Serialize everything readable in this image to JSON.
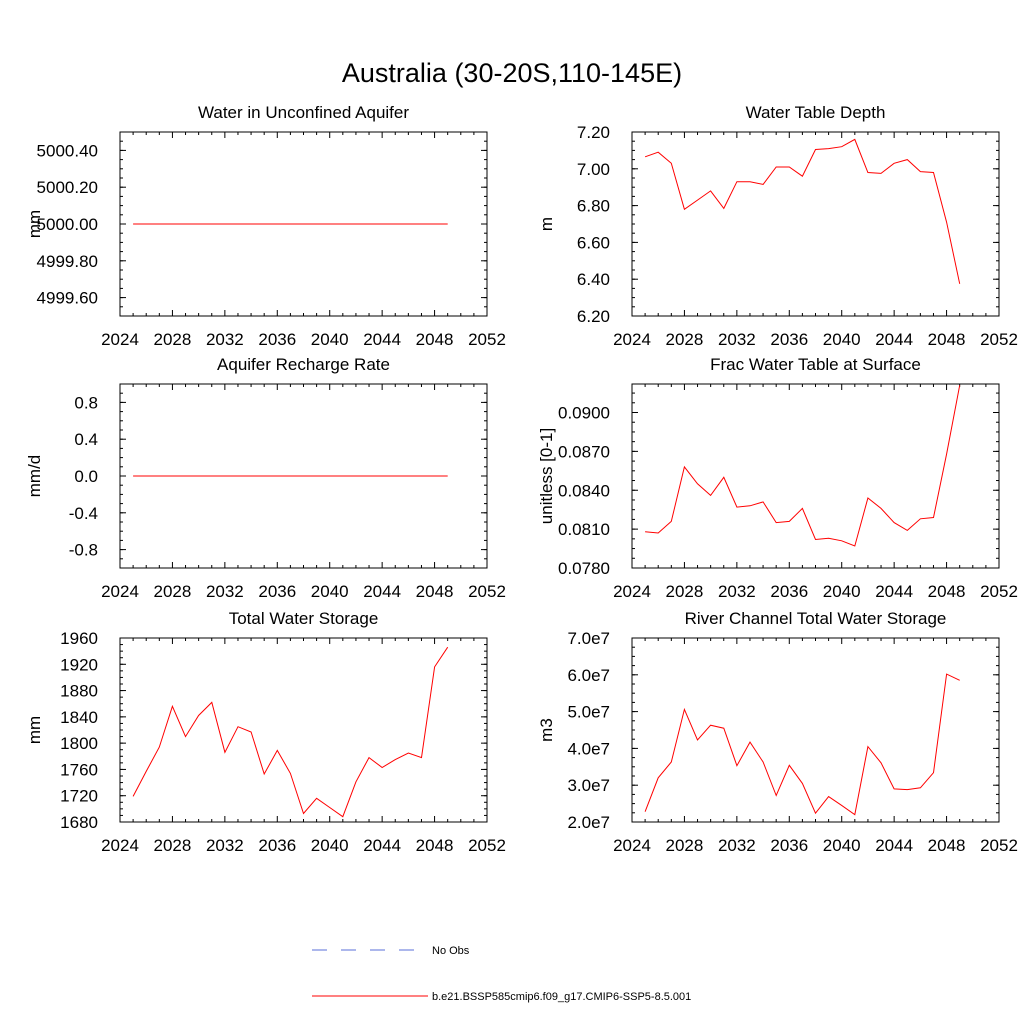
{
  "figure_title": "Australia (30-20S,110-145E)",
  "legend": {
    "entries": [
      {
        "label": "No Obs",
        "style": "dashed",
        "color": "#5a6fd8"
      },
      {
        "label": "b.e21.BSSP585cmip6.f09_g17.CMIP6-SSP5-8.5.001",
        "style": "solid",
        "color": "#ff0000"
      }
    ]
  },
  "chart_data": [
    {
      "type": "line",
      "title": "Water in Unconfined Aquifer",
      "ylabel": "mm",
      "xlabel": "",
      "xlim": [
        2024,
        2052
      ],
      "xticks": [
        2024,
        2028,
        2032,
        2036,
        2040,
        2044,
        2048,
        2052
      ],
      "ylim": [
        4999.5,
        5000.5
      ],
      "yticks": [
        4999.6,
        4999.8,
        5000.0,
        5000.2,
        5000.4
      ],
      "ytick_labels": [
        "4999.60",
        "4999.80",
        "5000.00",
        "5000.20",
        "5000.40"
      ],
      "series": [
        {
          "color": "#ff0000",
          "x": [
            2025,
            2049
          ],
          "values": [
            5000.0,
            5000.0
          ]
        }
      ]
    },
    {
      "type": "line",
      "title": "Water Table Depth",
      "ylabel": "m",
      "xlabel": "",
      "xlim": [
        2024,
        2052
      ],
      "xticks": [
        2024,
        2028,
        2032,
        2036,
        2040,
        2044,
        2048,
        2052
      ],
      "ylim": [
        6.2,
        7.2
      ],
      "yticks": [
        6.2,
        6.4,
        6.6,
        6.8,
        7.0,
        7.2
      ],
      "ytick_labels": [
        "6.20",
        "6.40",
        "6.60",
        "6.80",
        "7.00",
        "7.20"
      ],
      "series": [
        {
          "color": "#ff0000",
          "x": [
            2025,
            2026,
            2027,
            2028,
            2029,
            2030,
            2031,
            2032,
            2033,
            2034,
            2035,
            2036,
            2037,
            2038,
            2039,
            2040,
            2041,
            2042,
            2043,
            2044,
            2045,
            2046,
            2047,
            2048,
            2049
          ],
          "values": [
            7.065,
            7.09,
            7.03,
            6.78,
            6.83,
            6.88,
            6.785,
            6.93,
            6.93,
            6.915,
            7.01,
            7.01,
            6.96,
            7.105,
            7.11,
            7.12,
            7.16,
            6.98,
            6.975,
            7.03,
            7.05,
            6.985,
            6.98,
            6.71,
            6.375
          ]
        }
      ]
    },
    {
      "type": "line",
      "title": "Aquifer Recharge Rate",
      "ylabel": "mm/d",
      "xlabel": "",
      "xlim": [
        2024,
        2052
      ],
      "xticks": [
        2024,
        2028,
        2032,
        2036,
        2040,
        2044,
        2048,
        2052
      ],
      "ylim": [
        -1.0,
        1.0
      ],
      "yticks": [
        -0.8,
        -0.4,
        0.0,
        0.4,
        0.8
      ],
      "ytick_labels": [
        "-0.8",
        "-0.4",
        "0.0",
        "0.4",
        "0.8"
      ],
      "series": [
        {
          "color": "#ff0000",
          "x": [
            2025,
            2049
          ],
          "values": [
            0.0,
            0.0
          ]
        }
      ]
    },
    {
      "type": "line",
      "title": "Frac Water Table at Surface",
      "ylabel": "unitless [0-1]",
      "xlabel": "",
      "xlim": [
        2024,
        2052
      ],
      "xticks": [
        2024,
        2028,
        2032,
        2036,
        2040,
        2044,
        2048,
        2052
      ],
      "ylim": [
        0.078,
        0.0922
      ],
      "yticks": [
        0.078,
        0.081,
        0.084,
        0.087,
        0.09
      ],
      "ytick_labels": [
        "0.0780",
        "0.0810",
        "0.0840",
        "0.0870",
        "0.0900"
      ],
      "series": [
        {
          "color": "#ff0000",
          "x": [
            2025,
            2026,
            2027,
            2028,
            2029,
            2030,
            2031,
            2032,
            2033,
            2034,
            2035,
            2036,
            2037,
            2038,
            2039,
            2040,
            2041,
            2042,
            2043,
            2044,
            2045,
            2046,
            2047,
            2048,
            2049
          ],
          "values": [
            0.0808,
            0.0807,
            0.0816,
            0.0858,
            0.0845,
            0.0836,
            0.085,
            0.0827,
            0.0828,
            0.0831,
            0.0815,
            0.0816,
            0.0826,
            0.0802,
            0.0803,
            0.0801,
            0.0797,
            0.0834,
            0.0826,
            0.0815,
            0.0809,
            0.0818,
            0.0819,
            0.0868,
            0.0921
          ]
        }
      ]
    },
    {
      "type": "line",
      "title": "Total Water Storage",
      "ylabel": "mm",
      "xlabel": "",
      "xlim": [
        2024,
        2052
      ],
      "xticks": [
        2024,
        2028,
        2032,
        2036,
        2040,
        2044,
        2048,
        2052
      ],
      "ylim": [
        1680,
        1960
      ],
      "yticks": [
        1680,
        1720,
        1760,
        1800,
        1840,
        1880,
        1920,
        1960
      ],
      "ytick_labels": [
        "1680",
        "1720",
        "1760",
        "1800",
        "1840",
        "1880",
        "1920",
        "1960"
      ],
      "series": [
        {
          "color": "#ff0000",
          "x": [
            2025,
            2026,
            2027,
            2028,
            2029,
            2030,
            2031,
            2032,
            2033,
            2034,
            2035,
            2036,
            2037,
            2038,
            2039,
            2040,
            2041,
            2042,
            2043,
            2044,
            2045,
            2046,
            2047,
            2048,
            2049
          ],
          "values": [
            1719,
            1757,
            1794,
            1856,
            1810,
            1842,
            1862,
            1786,
            1825,
            1817,
            1753,
            1789,
            1754,
            1693,
            1716,
            1702,
            1688,
            1741,
            1778,
            1763,
            1775,
            1785,
            1778,
            1916,
            1946
          ]
        }
      ]
    },
    {
      "type": "line",
      "title": "River Channel Total Water Storage",
      "ylabel": "m3",
      "xlabel": "",
      "xlim": [
        2024,
        2052
      ],
      "xticks": [
        2024,
        2028,
        2032,
        2036,
        2040,
        2044,
        2048,
        2052
      ],
      "ylim": [
        20000000,
        70000000
      ],
      "yticks": [
        20000000,
        30000000,
        40000000,
        50000000,
        60000000,
        70000000
      ],
      "ytick_labels": [
        "2.0e7",
        "3.0e7",
        "4.0e7",
        "5.0e7",
        "6.0e7",
        "7.0e7"
      ],
      "series": [
        {
          "color": "#ff0000",
          "x": [
            2025,
            2026,
            2027,
            2028,
            2029,
            2030,
            2031,
            2032,
            2033,
            2034,
            2035,
            2036,
            2037,
            2038,
            2039,
            2040,
            2041,
            2042,
            2043,
            2044,
            2045,
            2046,
            2047,
            2048,
            2049
          ],
          "values": [
            22800000,
            32000000,
            36300000,
            50600000,
            42300000,
            46300000,
            45500000,
            35300000,
            41700000,
            36300000,
            27200000,
            35400000,
            30500000,
            22400000,
            26900000,
            24500000,
            22000000,
            40500000,
            36100000,
            29000000,
            28800000,
            29300000,
            33400000,
            60200000,
            58500000
          ]
        }
      ]
    }
  ]
}
